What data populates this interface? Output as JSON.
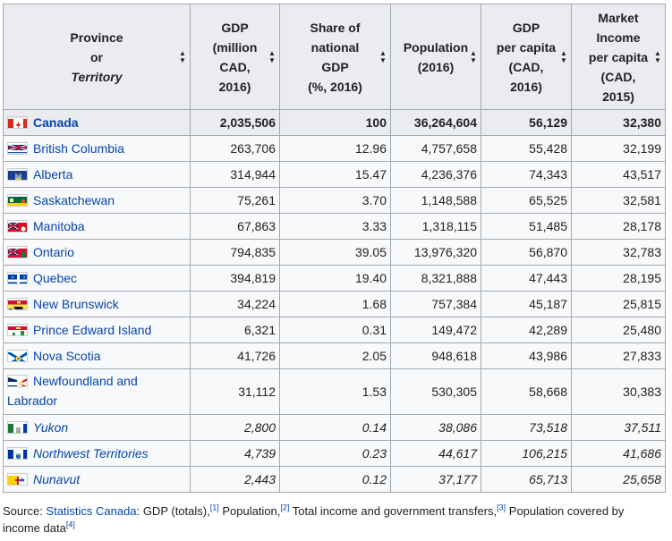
{
  "headers": [
    {
      "lines": [
        "Province",
        "or",
        "Territory"
      ],
      "italic_line": 2
    },
    {
      "lines": [
        "GDP",
        "(million",
        "CAD,",
        "2016)"
      ]
    },
    {
      "lines": [
        "Share of",
        "national",
        "GDP",
        "(%, 2016)"
      ]
    },
    {
      "lines": [
        "Population",
        "(2016)"
      ]
    },
    {
      "lines": [
        "GDP",
        "per capita",
        "(CAD,",
        "2016)"
      ]
    },
    {
      "lines": [
        "Market",
        "Income",
        "per capita",
        "(CAD,",
        "2015)"
      ]
    }
  ],
  "rows": [
    {
      "name": "Canada",
      "flag": "canada-flag-icon",
      "gdp": "2,035,506",
      "share": "100",
      "population": "36,264,604",
      "gdp_pc": "56,129",
      "income_pc": "32,380"
    },
    {
      "name": "British Columbia",
      "flag": "british-columbia-flag-icon",
      "gdp": "263,706",
      "share": "12.96",
      "population": "4,757,658",
      "gdp_pc": "55,428",
      "income_pc": "32,199"
    },
    {
      "name": "Alberta",
      "flag": "alberta-flag-icon",
      "gdp": "314,944",
      "share": "15.47",
      "population": "4,236,376",
      "gdp_pc": "74,343",
      "income_pc": "43,517"
    },
    {
      "name": "Saskatchewan",
      "flag": "saskatchewan-flag-icon",
      "gdp": "75,261",
      "share": "3.70",
      "population": "1,148,588",
      "gdp_pc": "65,525",
      "income_pc": "32,581"
    },
    {
      "name": "Manitoba",
      "flag": "manitoba-flag-icon",
      "gdp": "67,863",
      "share": "3.33",
      "population": "1,318,115",
      "gdp_pc": "51,485",
      "income_pc": "28,178"
    },
    {
      "name": "Ontario",
      "flag": "ontario-flag-icon",
      "gdp": "794,835",
      "share": "39.05",
      "population": "13,976,320",
      "gdp_pc": "56,870",
      "income_pc": "32,783"
    },
    {
      "name": "Quebec",
      "flag": "quebec-flag-icon",
      "gdp": "394,819",
      "share": "19.40",
      "population": "8,321,888",
      "gdp_pc": "47,443",
      "income_pc": "28,195"
    },
    {
      "name": "New Brunswick",
      "flag": "new-brunswick-flag-icon",
      "gdp": "34,224",
      "share": "1.68",
      "population": "757,384",
      "gdp_pc": "45,187",
      "income_pc": "25,815"
    },
    {
      "name": "Prince Edward Island",
      "flag": "pei-flag-icon",
      "gdp": "6,321",
      "share": "0.31",
      "population": "149,472",
      "gdp_pc": "42,289",
      "income_pc": "25,480"
    },
    {
      "name": "Nova Scotia",
      "flag": "nova-scotia-flag-icon",
      "gdp": "41,726",
      "share": "2.05",
      "population": "948,618",
      "gdp_pc": "43,986",
      "income_pc": "27,833"
    },
    {
      "name": "Newfoundland and",
      "name2": "Labrador",
      "flag": "newfoundland-flag-icon",
      "gdp": "31,112",
      "share": "1.53",
      "population": "530,305",
      "gdp_pc": "58,668",
      "income_pc": "30,383"
    },
    {
      "name": "Yukon",
      "flag": "yukon-flag-icon",
      "gdp": "2,800",
      "share": "0.14",
      "population": "38,086",
      "gdp_pc": "73,518",
      "income_pc": "37,511"
    },
    {
      "name": "Northwest Territories",
      "flag": "northwest-territories-flag-icon",
      "gdp": "4,739",
      "share": "0.23",
      "population": "44,617",
      "gdp_pc": "106,215",
      "income_pc": "41,686"
    },
    {
      "name": "Nunavut",
      "flag": "nunavut-flag-icon",
      "gdp": "2,443",
      "share": "0.12",
      "population": "37,177",
      "gdp_pc": "65,713",
      "income_pc": "25,658"
    }
  ],
  "source": {
    "prefix": "Source: ",
    "link": "Statistics Canada",
    "t1": ": GDP (totals),",
    "r1": "[1]",
    "t2": " Population,",
    "r2": "[2]",
    "t3": " Total income and government transfers,",
    "r3": "[3]",
    "t4": " Population covered by income data",
    "r4": "[4]"
  },
  "colors": {
    "link": "#0645ad",
    "header_bg": "#eaecf0",
    "cell_bg": "#f8f9fa",
    "border": "#a2a9b1"
  }
}
